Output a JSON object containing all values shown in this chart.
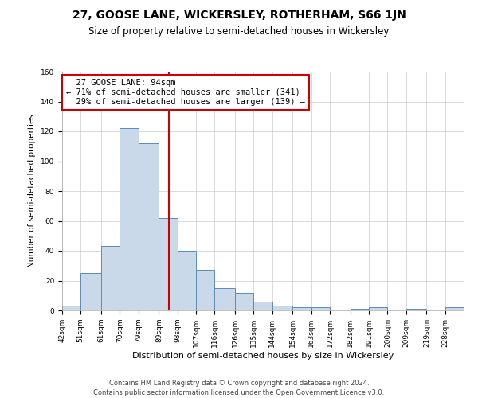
{
  "title": "27, GOOSE LANE, WICKERSLEY, ROTHERHAM, S66 1JN",
  "subtitle": "Size of property relative to semi-detached houses in Wickersley",
  "xlabel": "Distribution of semi-detached houses by size in Wickersley",
  "ylabel": "Number of semi-detached properties",
  "bin_labels": [
    "42sqm",
    "51sqm",
    "61sqm",
    "70sqm",
    "79sqm",
    "89sqm",
    "98sqm",
    "107sqm",
    "116sqm",
    "126sqm",
    "135sqm",
    "144sqm",
    "154sqm",
    "163sqm",
    "172sqm",
    "182sqm",
    "191sqm",
    "200sqm",
    "209sqm",
    "219sqm",
    "228sqm"
  ],
  "bin_edges": [
    42,
    51,
    61,
    70,
    79,
    89,
    98,
    107,
    116,
    126,
    135,
    144,
    154,
    163,
    172,
    182,
    191,
    200,
    209,
    219,
    228
  ],
  "counts": [
    3,
    25,
    43,
    122,
    112,
    62,
    40,
    27,
    15,
    12,
    6,
    3,
    2,
    2,
    0,
    1,
    2,
    0,
    1,
    0,
    2
  ],
  "property_size": 94,
  "property_label": "27 GOOSE LANE: 94sqm",
  "pct_smaller": 71,
  "pct_smaller_count": 341,
  "pct_larger": 29,
  "pct_larger_count": 139,
  "bar_color": "#c9d9ea",
  "bar_edge_color": "#5b8db8",
  "vline_color": "#cc0000",
  "annotation_box_edge": "#cc0000",
  "grid_color": "#cccccc",
  "bg_color": "#ffffff",
  "ylim": [
    0,
    160
  ],
  "footer": "Contains HM Land Registry data © Crown copyright and database right 2024.\nContains public sector information licensed under the Open Government Licence v3.0.",
  "title_fontsize": 10,
  "subtitle_fontsize": 8.5,
  "xlabel_fontsize": 8,
  "ylabel_fontsize": 7.5,
  "tick_fontsize": 6.5,
  "annotation_fontsize": 7.5,
  "footer_fontsize": 6
}
